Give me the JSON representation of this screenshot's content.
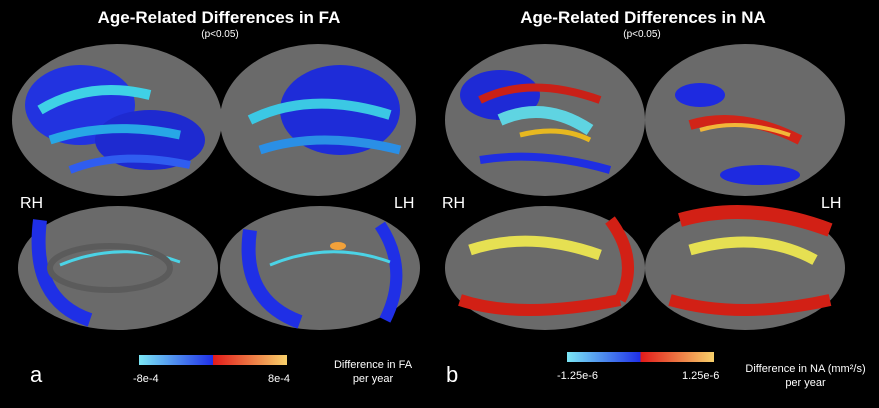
{
  "panels": [
    {
      "title": "Age-Related Differences in FA",
      "subtitle": "(p<0.05)",
      "hemi_left": "RH",
      "hemi_right": "LH",
      "panel_label": "a",
      "legend": {
        "min": "-8e-4",
        "max": "8e-4",
        "caption_line1": "Difference in FA",
        "caption_line2": "per year"
      }
    },
    {
      "title": "Age-Related Differences in NA",
      "subtitle": "(p<0.05)",
      "hemi_left": "RH",
      "hemi_right": "LH",
      "panel_label": "b",
      "legend": {
        "min": "-1.25e-6",
        "max": "1.25e-6",
        "caption_line1": "Difference in NA (mm²/s)",
        "caption_line2": "per year"
      }
    }
  ],
  "colors": {
    "cortex": "#6d6d6d",
    "blue": "#1d2ee6",
    "cyan": "#5fe3e8",
    "red": "#d72418",
    "yellow": "#f4e35a"
  }
}
